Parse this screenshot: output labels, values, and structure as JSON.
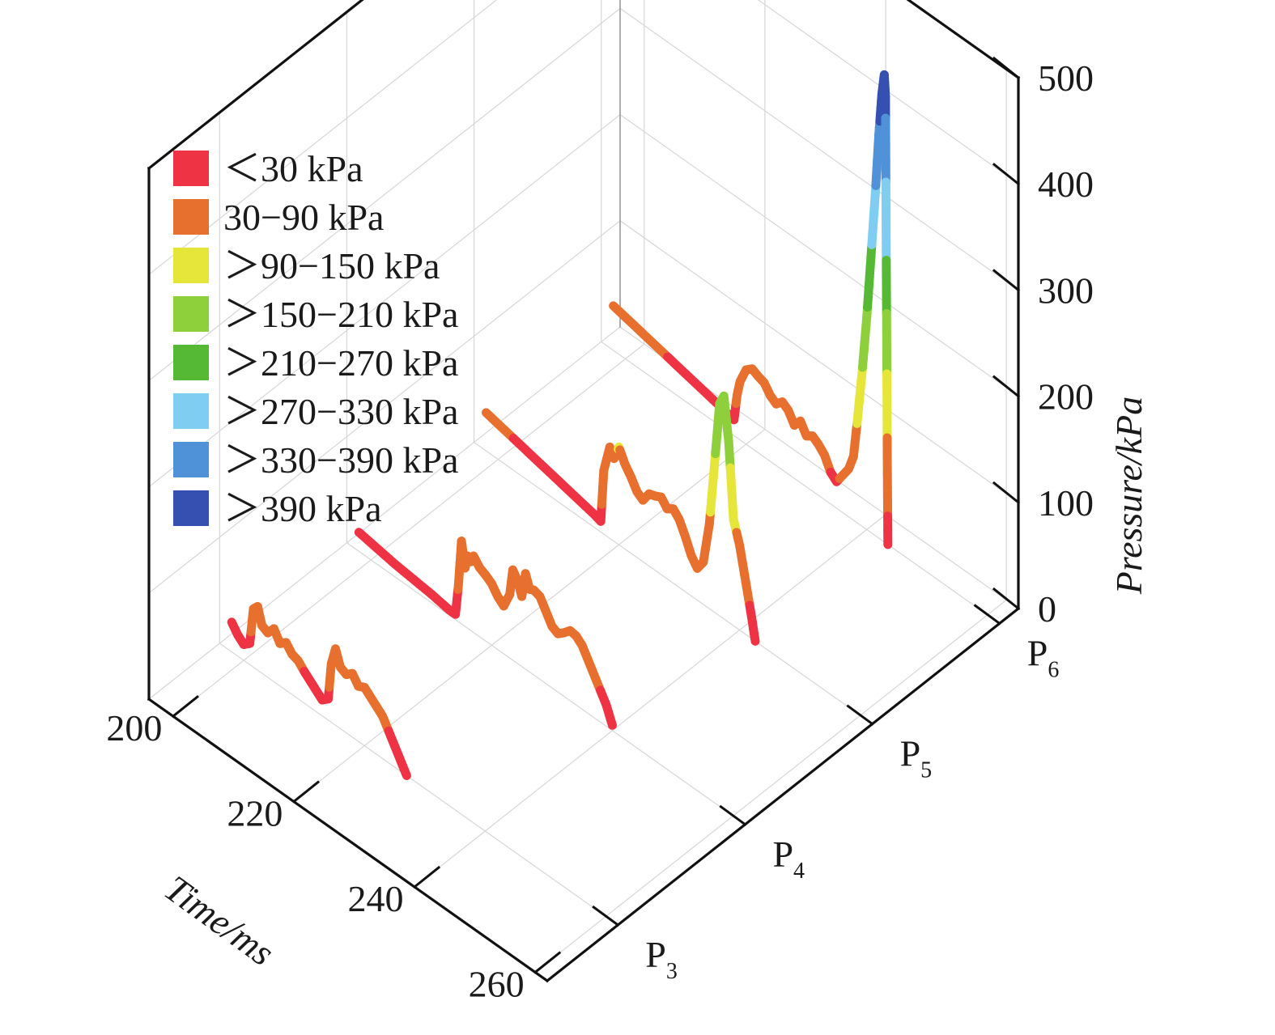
{
  "chart_data": {
    "type": "line",
    "subtype": "3d-waterfall",
    "xlabel": "Time/ms",
    "zlabel": "Pressure/kPa",
    "x_ticks": [
      "200",
      "220",
      "240",
      "260"
    ],
    "z_ticks": [
      "0",
      "100",
      "200",
      "300",
      "400",
      "500"
    ],
    "xlim": [
      196,
      262
    ],
    "zlim": [
      0,
      500
    ],
    "sensors": [
      {
        "main": "P",
        "sub": "3"
      },
      {
        "main": "P",
        "sub": "4"
      },
      {
        "main": "P",
        "sub": "5"
      },
      {
        "main": "P",
        "sub": "6"
      }
    ],
    "grid": true,
    "legend_position": "top-left",
    "legend": [
      {
        "label": "＜30 kPa",
        "color": "#ee3344"
      },
      {
        "label": "30−90 kPa",
        "color": "#e8702f"
      },
      {
        "label": "＞90−150 kPa",
        "color": "#e6e63a"
      },
      {
        "label": "＞150−210 kPa",
        "color": "#8ed03c"
      },
      {
        "label": "＞210−270 kPa",
        "color": "#56b935"
      },
      {
        "label": "＞270−330 kPa",
        "color": "#7fcdf0"
      },
      {
        "label": "＞330−390 kPa",
        "color": "#4f92d8"
      },
      {
        "label": "＞390 kPa",
        "color": "#3550b0"
      }
    ],
    "series": [
      {
        "sensor": "P3",
        "points": [
          [
            198,
            28
          ],
          [
            199,
            20
          ],
          [
            200,
            15
          ],
          [
            201,
            20
          ],
          [
            201.6,
            55
          ],
          [
            202.3,
            60
          ],
          [
            203,
            45
          ],
          [
            204,
            42
          ],
          [
            205,
            50
          ],
          [
            206,
            40
          ],
          [
            207,
            45
          ],
          [
            208,
            38
          ],
          [
            209,
            36
          ],
          [
            210,
            30
          ],
          [
            211,
            25
          ],
          [
            212,
            20
          ],
          [
            213,
            15
          ],
          [
            214,
            20
          ],
          [
            214.5,
            55
          ],
          [
            215.2,
            72
          ],
          [
            216,
            58
          ],
          [
            217,
            55
          ],
          [
            218,
            60
          ],
          [
            219,
            52
          ],
          [
            220,
            55
          ],
          [
            221,
            50
          ],
          [
            222,
            45
          ],
          [
            223,
            40
          ],
          [
            224,
            30
          ],
          [
            225,
            20
          ],
          [
            226,
            10
          ],
          [
            227,
            0
          ]
        ]
      },
      {
        "sensor": "P4",
        "points": [
          [
            198,
            18
          ],
          [
            201,
            15
          ],
          [
            204,
            12
          ],
          [
            207,
            10
          ],
          [
            210,
            8
          ],
          [
            213,
            5
          ],
          [
            214,
            5
          ],
          [
            214.5,
            35
          ],
          [
            215,
            78
          ],
          [
            215.6,
            55
          ],
          [
            216,
            68
          ],
          [
            216.6,
            65
          ],
          [
            217,
            72
          ],
          [
            218,
            65
          ],
          [
            219,
            62
          ],
          [
            220,
            58
          ],
          [
            221,
            50
          ],
          [
            222,
            45
          ],
          [
            223,
            60
          ],
          [
            223.5,
            85
          ],
          [
            224.3,
            78
          ],
          [
            225,
            66
          ],
          [
            225.6,
            90
          ],
          [
            226.3,
            78
          ],
          [
            227,
            80
          ],
          [
            228,
            78
          ],
          [
            229,
            68
          ],
          [
            230,
            58
          ],
          [
            231,
            55
          ],
          [
            232,
            60
          ],
          [
            233,
            66
          ],
          [
            234,
            65
          ],
          [
            235,
            60
          ],
          [
            236,
            50
          ],
          [
            237,
            40
          ],
          [
            238,
            30
          ],
          [
            239,
            20
          ],
          [
            240,
            5
          ]
        ]
      },
      {
        "sensor": "P5",
        "points": [
          [
            198,
            36
          ],
          [
            201,
            32
          ],
          [
            204,
            28
          ],
          [
            207,
            24
          ],
          [
            210,
            20
          ],
          [
            213,
            16
          ],
          [
            216,
            12
          ],
          [
            217,
            10
          ],
          [
            217.5,
            60
          ],
          [
            218.5,
            86
          ],
          [
            219.2,
            78
          ],
          [
            220,
            92
          ],
          [
            221,
            80
          ],
          [
            222,
            72
          ],
          [
            223,
            62
          ],
          [
            224,
            58
          ],
          [
            225,
            68
          ],
          [
            226,
            70
          ],
          [
            227,
            73
          ],
          [
            228,
            66
          ],
          [
            229,
            70
          ],
          [
            230,
            64
          ],
          [
            231,
            52
          ],
          [
            232,
            38
          ],
          [
            233,
            30
          ],
          [
            234,
            40
          ],
          [
            235,
            80
          ],
          [
            236,
            150
          ],
          [
            236.7,
            200
          ],
          [
            237.4,
            210
          ],
          [
            238.2,
            170
          ],
          [
            239,
            100
          ],
          [
            240,
            80
          ],
          [
            241,
            50
          ],
          [
            242,
            20
          ],
          [
            242.6,
            0
          ]
        ]
      },
      {
        "sensor": "P6",
        "points": [
          [
            198,
            42
          ],
          [
            201,
            38
          ],
          [
            204,
            34
          ],
          [
            207,
            30
          ],
          [
            210,
            26
          ],
          [
            213,
            22
          ],
          [
            216,
            18
          ],
          [
            218,
            15
          ],
          [
            218.5,
            40
          ],
          [
            219,
            55
          ],
          [
            220,
            70
          ],
          [
            221,
            75
          ],
          [
            222,
            72
          ],
          [
            223,
            70
          ],
          [
            224,
            62
          ],
          [
            225,
            58
          ],
          [
            226,
            64
          ],
          [
            227,
            60
          ],
          [
            228,
            50
          ],
          [
            229,
            58
          ],
          [
            230,
            48
          ],
          [
            231,
            52
          ],
          [
            232,
            48
          ],
          [
            233,
            42
          ],
          [
            234,
            30
          ],
          [
            235,
            25
          ],
          [
            236,
            35
          ],
          [
            237,
            45
          ],
          [
            237.8,
            60
          ],
          [
            238.5,
            100
          ],
          [
            239.3,
            150
          ],
          [
            240,
            200
          ],
          [
            240.7,
            260
          ],
          [
            241.5,
            330
          ],
          [
            242,
            380
          ],
          [
            242.5,
            420
          ],
          [
            242.9,
            440
          ],
          [
            243.1,
            420
          ],
          [
            243.2,
            300
          ],
          [
            243.3,
            200
          ],
          [
            243.4,
            80
          ],
          [
            243.5,
            0
          ]
        ]
      }
    ]
  }
}
